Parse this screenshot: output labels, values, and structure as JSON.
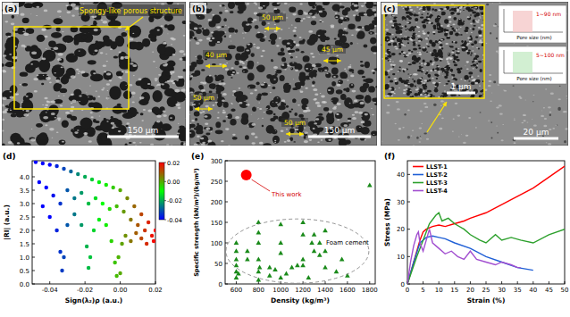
{
  "images": [
    {
      "label": "(a)",
      "annotation": "Spongy-like porous structure",
      "scale_bar": "150 μm"
    },
    {
      "label": "(b)",
      "annotations": [
        "50 μm",
        "40 μm",
        "45 μm",
        "50 μm",
        "50 μm"
      ],
      "scale_bar": "150 μm"
    },
    {
      "label": "(c)",
      "inset_scale_bar": "1 μm",
      "scale_bar": "20 μm",
      "insets": [
        {
          "annotation": "1~90 nm",
          "x_label": "Pore size (nm)"
        },
        {
          "annotation": "5~100 nm",
          "x_label": "Pore size (nm)"
        }
      ]
    }
  ],
  "chart_data": [
    {
      "type": "scatter",
      "title": "(d)",
      "x_label": "Sign(λ₂)ρ (a.u.)",
      "y_label": "|RI| (a.u.)",
      "x": [
        -0.048,
        -0.044,
        -0.04,
        -0.036,
        -0.032,
        -0.028,
        -0.024,
        -0.02,
        -0.016,
        -0.012,
        -0.008,
        -0.004,
        0,
        0.004,
        0.008,
        0.012,
        0.016,
        0.02,
        -0.046,
        -0.042,
        -0.038,
        -0.034,
        -0.03,
        -0.026,
        -0.022,
        -0.018,
        -0.014,
        -0.01,
        -0.006,
        -0.002,
        0.002,
        0.006,
        0.01,
        0.014,
        0.018,
        -0.044,
        -0.04,
        -0.036,
        -0.034,
        -0.033,
        -0.032,
        -0.03,
        -0.026,
        -0.022,
        -0.019,
        -0.018,
        -0.017,
        -0.015,
        -0.012,
        -0.008,
        -0.005,
        -0.003,
        -0.002,
        -0.001,
        0.001,
        0,
        0.003,
        0.006,
        0.009,
        0.012,
        0.015,
        0.019
      ],
      "values": [
        4.55,
        4.5,
        4.45,
        4.4,
        4.3,
        4.2,
        4.1,
        4.0,
        3.9,
        3.8,
        3.7,
        3.6,
        3.5,
        3.2,
        2.9,
        2.6,
        2.3,
        2.0,
        3.8,
        3.6,
        3.3,
        3.0,
        3.5,
        3.2,
        3.4,
        3.0,
        3.2,
        3.0,
        2.8,
        2.9,
        2.7,
        2.4,
        2.2,
        2.0,
        1.8,
        2.9,
        2.5,
        2.0,
        1.2,
        0.5,
        1.0,
        2.2,
        2.6,
        2.2,
        1.4,
        0.6,
        1.0,
        2.0,
        2.4,
        2.2,
        1.6,
        0.8,
        0.3,
        1.0,
        1.5,
        0.4,
        1.8,
        1.6,
        1.9,
        1.7,
        1.5,
        1.6
      ],
      "marker": "circle",
      "xlim": [
        -0.05,
        0.02
      ],
      "ylim": [
        0,
        4.6
      ],
      "xticks": [
        -0.04,
        -0.02,
        {
          "value": 0,
          "label": "0.00"
        },
        0.02
      ],
      "yticks": [
        {
          "value": 0,
          "label": "0.0"
        },
        0.5,
        {
          "value": 1,
          "label": "1.0"
        },
        1.5,
        {
          "value": 2,
          "label": "2.0"
        },
        2.5,
        {
          "value": 3,
          "label": "3.0"
        },
        3.5,
        {
          "value": 4,
          "label": "4.0"
        }
      ],
      "color_bar": {
        "range": [
          -0.04,
          0.02
        ],
        "ticks": [
          0.02,
          {
            "value": 0,
            "label": "0.00"
          },
          -0.02,
          -0.04
        ]
      }
    },
    {
      "type": "scatter",
      "title": "(e)",
      "x_label": "Density (kg/m³)",
      "y_label": "Specific strength (kN/m²)/(kg/m³)",
      "series": [
        {
          "color": "#ff0000",
          "marker": "circle",
          "x": [
            690
          ],
          "values": [
            265
          ]
        },
        {
          "color": "#1a8a1a",
          "marker": "triangle",
          "x": [
            600,
            600,
            600,
            600,
            600,
            600,
            620,
            700,
            700,
            800,
            800,
            800,
            800,
            800,
            800,
            810,
            900,
            900,
            950,
            1000,
            1000,
            1000,
            1000,
            1050,
            1100,
            1150,
            1200,
            1200,
            1200,
            1200,
            1250,
            1280,
            1300,
            1300,
            1350,
            1350,
            1400,
            1400,
            1400,
            1500,
            1550,
            1600,
            1800
          ],
          "values": [
            15,
            30,
            45,
            60,
            80,
            100,
            25,
            60,
            80,
            10,
            30,
            60,
            100,
            125,
            150,
            40,
            20,
            40,
            35,
            15,
            75,
            100,
            145,
            25,
            40,
            45,
            45,
            60,
            120,
            150,
            15,
            100,
            80,
            120,
            70,
            100,
            40,
            80,
            130,
            30,
            60,
            20,
            240
          ]
        }
      ],
      "annotations": [
        "This work",
        "Foam cement"
      ],
      "xlim": [
        500,
        1850
      ],
      "ylim": [
        0,
        300
      ],
      "xticks": [
        600,
        800,
        1000,
        1200,
        1400,
        1600,
        1800
      ],
      "yticks": [
        0,
        50,
        100,
        150,
        200,
        250,
        300
      ]
    },
    {
      "type": "line",
      "title": "(f)",
      "x_label": "Strain (%)",
      "y_label": "Stress (MPa)",
      "legend": "upper left",
      "series": [
        {
          "name": "LLST-1",
          "color": "#ff0000",
          "x": [
            0,
            2,
            4,
            5,
            6,
            8,
            10,
            12,
            15,
            18,
            20,
            25,
            30,
            35,
            40,
            45,
            50
          ],
          "values": [
            0,
            8,
            16,
            19,
            20,
            21,
            21.5,
            21,
            22,
            23,
            24,
            26,
            29,
            32,
            35,
            39,
            43
          ]
        },
        {
          "name": "LLST-2",
          "color": "#1f5fd6",
          "x": [
            0,
            2,
            4,
            6,
            8,
            10,
            12,
            15,
            20,
            25,
            30,
            35,
            40
          ],
          "values": [
            0,
            8,
            15,
            17,
            17.5,
            17,
            16.5,
            15,
            13,
            10,
            8,
            6,
            5
          ]
        },
        {
          "name": "LLST-3",
          "color": "#2ca02c",
          "x": [
            0,
            3,
            5,
            7,
            9,
            10,
            11,
            13,
            15,
            18,
            20,
            23,
            25,
            28,
            30,
            33,
            36,
            40,
            45,
            50
          ],
          "values": [
            0,
            10,
            16,
            22,
            25,
            26,
            23,
            24,
            22,
            20,
            18,
            16,
            15,
            18,
            16,
            17,
            16,
            15,
            18,
            20
          ]
        },
        {
          "name": "LLST-4",
          "color": "#a24fd0",
          "x": [
            0,
            1,
            2,
            3,
            3.5,
            4,
            5,
            6,
            7,
            8,
            10,
            12,
            14,
            16,
            18,
            20,
            22,
            25,
            28,
            30,
            33,
            35,
            36
          ],
          "values": [
            0,
            8,
            14,
            18,
            19,
            15,
            12,
            16,
            20,
            15,
            13,
            11,
            12,
            10,
            9,
            12,
            9,
            8,
            7,
            8,
            7,
            6,
            6
          ]
        }
      ],
      "xlim": [
        0,
        50
      ],
      "ylim": [
        0,
        45
      ],
      "xticks": [
        0,
        5,
        10,
        15,
        20,
        25,
        30,
        35,
        40,
        45,
        50
      ],
      "yticks": [
        0,
        10,
        20,
        30,
        40
      ]
    }
  ]
}
